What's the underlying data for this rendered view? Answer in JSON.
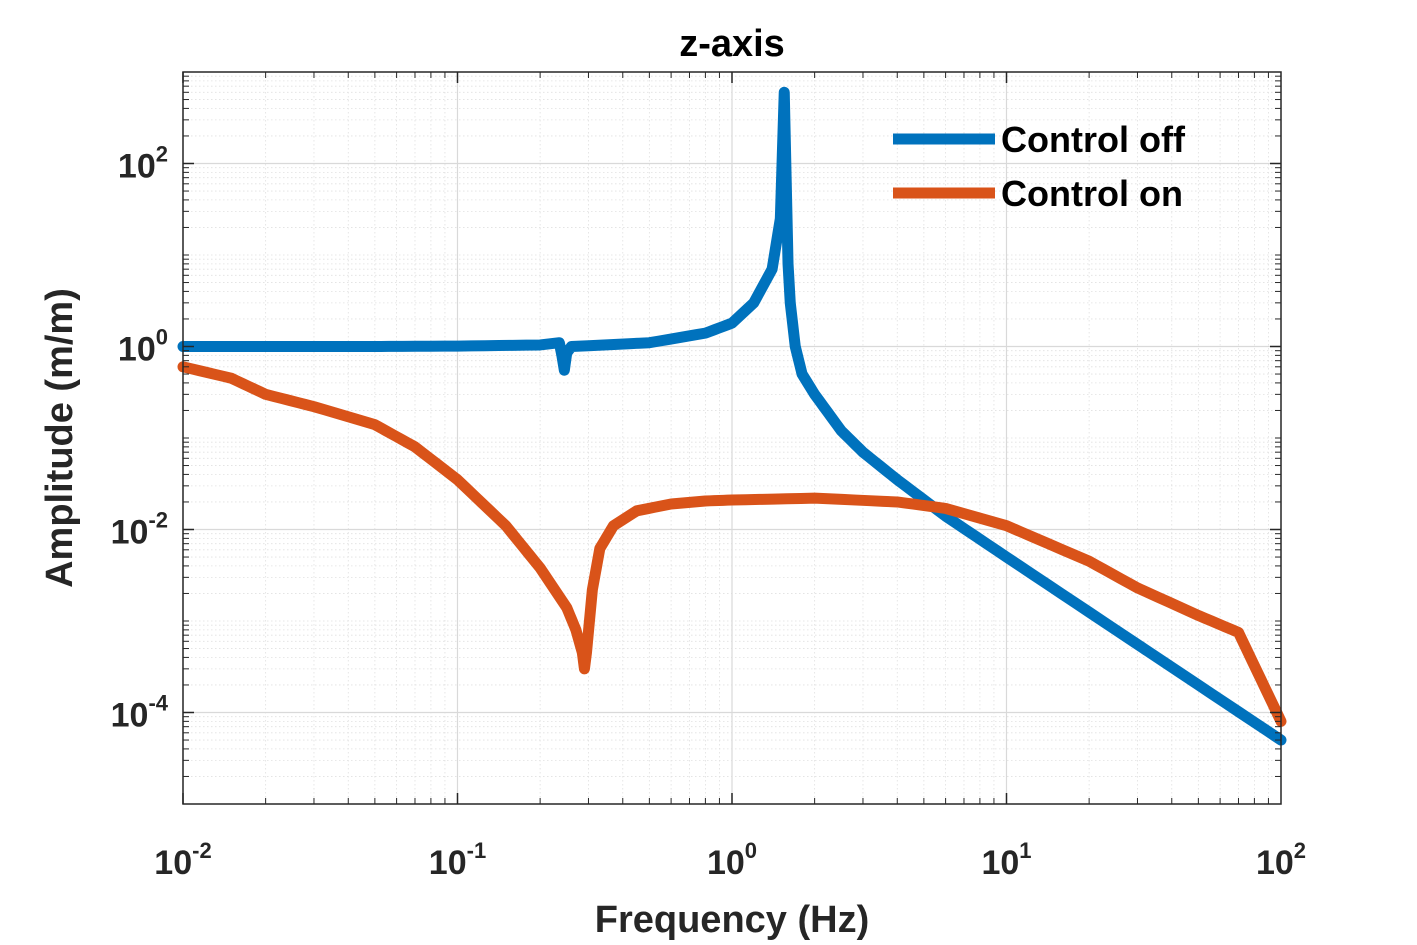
{
  "chart_data": {
    "type": "line",
    "title": "z-axis",
    "xlabel": "Frequency (Hz)",
    "ylabel": "Amplitude (m/m)",
    "xscale": "log",
    "yscale": "log",
    "xlim": [
      0.01,
      100
    ],
    "ylim": [
      1e-05,
      1000
    ],
    "grid": true,
    "minor_grid": true,
    "legend_position": "top-right",
    "x_ticks": [
      {
        "value": 0.01,
        "base": "10",
        "exp": "-2"
      },
      {
        "value": 0.1,
        "base": "10",
        "exp": "-1"
      },
      {
        "value": 1,
        "base": "10",
        "exp": "0"
      },
      {
        "value": 10,
        "base": "10",
        "exp": "1"
      },
      {
        "value": 100,
        "base": "10",
        "exp": "2"
      }
    ],
    "y_ticks": [
      {
        "value": 0.0001,
        "base": "10",
        "exp": "-4"
      },
      {
        "value": 0.01,
        "base": "10",
        "exp": "-2"
      },
      {
        "value": 1,
        "base": "10",
        "exp": "0"
      },
      {
        "value": 100,
        "base": "10",
        "exp": "2"
      }
    ],
    "series": [
      {
        "name": "Control off",
        "color": "#0072BD",
        "x": [
          0.01,
          0.02,
          0.05,
          0.1,
          0.2,
          0.235,
          0.24,
          0.245,
          0.25,
          0.26,
          0.3,
          0.5,
          0.8,
          1.0,
          1.2,
          1.4,
          1.5,
          1.55,
          1.6,
          1.63,
          1.7,
          1.8,
          2.0,
          2.5,
          3.0,
          4.0,
          6.0,
          10,
          20,
          50,
          100
        ],
        "values": [
          1.0,
          1.0,
          1.0,
          1.01,
          1.04,
          1.1,
          0.8,
          0.55,
          0.85,
          1.0,
          1.02,
          1.1,
          1.4,
          1.8,
          3.0,
          7.0,
          25,
          600,
          8,
          3,
          1.0,
          0.5,
          0.3,
          0.12,
          0.07,
          0.035,
          0.014,
          0.005,
          0.00125,
          0.0002,
          5e-05
        ]
      },
      {
        "name": "Control on",
        "color": "#D95319",
        "x": [
          0.01,
          0.015,
          0.02,
          0.03,
          0.05,
          0.07,
          0.1,
          0.15,
          0.2,
          0.25,
          0.27,
          0.285,
          0.29,
          0.295,
          0.31,
          0.33,
          0.37,
          0.45,
          0.6,
          0.8,
          1.0,
          2.0,
          4.0,
          6.0,
          10,
          20,
          30,
          50,
          70,
          100
        ],
        "values": [
          0.6,
          0.45,
          0.3,
          0.22,
          0.14,
          0.08,
          0.035,
          0.011,
          0.0038,
          0.0014,
          0.0008,
          0.00045,
          0.0003,
          0.00045,
          0.0022,
          0.0062,
          0.011,
          0.016,
          0.019,
          0.0205,
          0.021,
          0.022,
          0.02,
          0.017,
          0.011,
          0.0045,
          0.0023,
          0.00115,
          0.00075,
          8e-05
        ]
      }
    ]
  }
}
